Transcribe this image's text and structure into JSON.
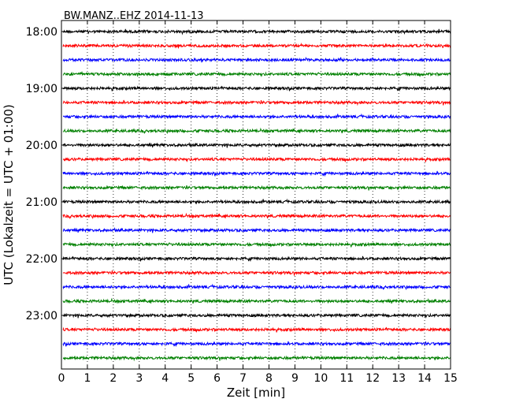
{
  "chart_data": {
    "type": "line",
    "title": "BW.MANZ..EHZ 2014-11-13",
    "xlabel": "Zeit  [min]",
    "ylabel": "UTC (Lokalzeit = UTC + 01:00)",
    "xlim": [
      0,
      15
    ],
    "x_ticks": [
      0,
      1,
      2,
      3,
      4,
      5,
      6,
      7,
      8,
      9,
      10,
      11,
      12,
      13,
      14,
      15
    ],
    "y_tick_labels": [
      "18:00",
      "19:00",
      "20:00",
      "21:00",
      "22:00",
      "23:00"
    ],
    "trace_interval_minutes": 15,
    "trace_colors": [
      "#000000",
      "#ff0000",
      "#0000ff",
      "#008000"
    ],
    "grid": "vertical dotted",
    "series": [
      {
        "start": "18:00",
        "color": "#000000"
      },
      {
        "start": "18:15",
        "color": "#ff0000"
      },
      {
        "start": "18:30",
        "color": "#0000ff"
      },
      {
        "start": "18:45",
        "color": "#008000"
      },
      {
        "start": "19:00",
        "color": "#000000"
      },
      {
        "start": "19:15",
        "color": "#ff0000"
      },
      {
        "start": "19:30",
        "color": "#0000ff"
      },
      {
        "start": "19:45",
        "color": "#008000"
      },
      {
        "start": "20:00",
        "color": "#000000"
      },
      {
        "start": "20:15",
        "color": "#ff0000"
      },
      {
        "start": "20:30",
        "color": "#0000ff"
      },
      {
        "start": "20:45",
        "color": "#008000"
      },
      {
        "start": "21:00",
        "color": "#000000"
      },
      {
        "start": "21:15",
        "color": "#ff0000"
      },
      {
        "start": "21:30",
        "color": "#0000ff"
      },
      {
        "start": "21:45",
        "color": "#008000"
      },
      {
        "start": "22:00",
        "color": "#000000"
      },
      {
        "start": "22:15",
        "color": "#ff0000"
      },
      {
        "start": "22:30",
        "color": "#0000ff"
      },
      {
        "start": "22:45",
        "color": "#008000"
      },
      {
        "start": "23:00",
        "color": "#000000"
      },
      {
        "start": "23:15",
        "color": "#ff0000"
      },
      {
        "start": "23:30",
        "color": "#0000ff"
      },
      {
        "start": "23:45",
        "color": "#008000"
      }
    ]
  }
}
